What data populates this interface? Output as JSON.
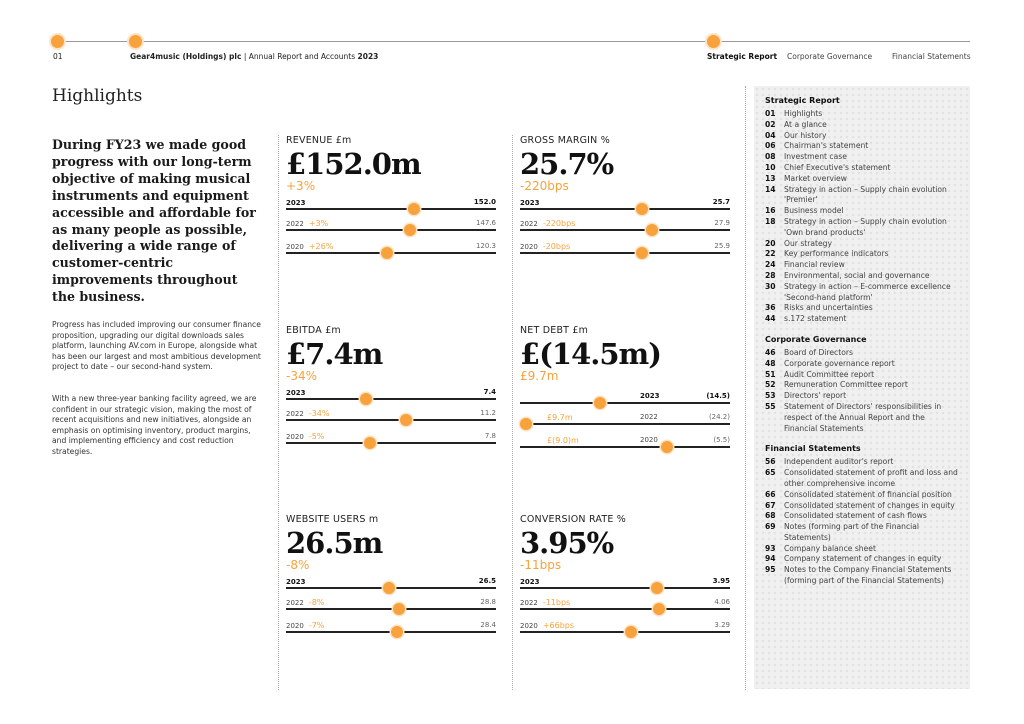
{
  "header": {
    "page_number": "01",
    "company": "Gear4music (Holdings) plc",
    "report": "Annual Report and Accounts",
    "year": "2023",
    "nav": [
      "Strategic Report",
      "Corporate Governance",
      "Financial Statements"
    ]
  },
  "title": "Highlights",
  "intro": "During FY23 we made good progress with our long-term objective of making musical instruments and equipment accessible and affordable for as many people as possible, delivering a wide range of customer-centric improvements throughout the business.",
  "paragraphs": [
    "Progress has included improving our consumer finance proposition, upgrading our digital downloads sales platform, launching AV.com in Europe, alongside what has been our largest and most ambitious development project to date – our second-hand system.",
    "With a new three-year banking facility agreed, we are confident in our strategic vision, making the most of recent acquisitions and new initiatives, alongside an emphasis on optimising inventory, product margins, and implementing efficiency and cost reduction strategies."
  ],
  "colors": {
    "accent": "#f7a23c"
  },
  "metrics": [
    {
      "title": "REVENUE £m",
      "value": "£152.0m",
      "change": "+3%",
      "rows": [
        {
          "year": "2023",
          "change": "",
          "value": "152.0",
          "marker": 0.61
        },
        {
          "year": "2022",
          "change": "+3%",
          "value": "147.6",
          "marker": 0.59
        },
        {
          "year": "2020",
          "change": "+26%",
          "value": "120.3",
          "marker": 0.48
        }
      ]
    },
    {
      "title": "GROSS MARGIN %",
      "value": "25.7%",
      "change": "-220bps",
      "rows": [
        {
          "year": "2023",
          "change": "",
          "value": "25.7",
          "marker": 0.58
        },
        {
          "year": "2022",
          "change": "-220bps",
          "value": "27.9",
          "marker": 0.63
        },
        {
          "year": "2020",
          "change": "-20bps",
          "value": "25.9",
          "marker": 0.58
        }
      ]
    },
    {
      "title": "EBITDA £m",
      "value": "£7.4m",
      "change": "-34%",
      "rows": [
        {
          "year": "2023",
          "change": "",
          "value": "7.4",
          "marker": 0.38
        },
        {
          "year": "2022",
          "change": "-34%",
          "value": "11.2",
          "marker": 0.57
        },
        {
          "year": "2020",
          "change": "-5%",
          "value": "7.8",
          "marker": 0.4
        }
      ]
    },
    {
      "title": "NET DEBT £m",
      "value": "£(14.5m)",
      "change": "£9.7m",
      "rows": [
        {
          "year": "2023",
          "change": "",
          "value": "(14.5)",
          "marker": 0.38
        },
        {
          "year": "2022",
          "change": "£9.7m",
          "value": "(24.2)",
          "marker": 0.03
        },
        {
          "year": "2020",
          "change": "£(9.0)m",
          "value": "(5.5)",
          "marker": 0.7
        }
      ]
    },
    {
      "title": "WEBSITE USERS m",
      "value": "26.5m",
      "change": "-8%",
      "rows": [
        {
          "year": "2023",
          "change": "",
          "value": "26.5",
          "marker": 0.49
        },
        {
          "year": "2022",
          "change": "-8%",
          "value": "28.8",
          "marker": 0.54
        },
        {
          "year": "2020",
          "change": "-7%",
          "value": "28.4",
          "marker": 0.53
        }
      ]
    },
    {
      "title": "CONVERSION RATE %",
      "value": "3.95%",
      "change": "-11bps",
      "rows": [
        {
          "year": "2023",
          "change": "",
          "value": "3.95",
          "marker": 0.65
        },
        {
          "year": "2022",
          "change": "-11bps",
          "value": "4.06",
          "marker": 0.66
        },
        {
          "year": "2020",
          "change": "+66bps",
          "value": "3.29",
          "marker": 0.53
        }
      ]
    }
  ],
  "contents": [
    {
      "section": "Strategic Report",
      "items": [
        [
          "01",
          "Highlights"
        ],
        [
          "02",
          "At a glance"
        ],
        [
          "04",
          "Our history"
        ],
        [
          "06",
          "Chairman's statement"
        ],
        [
          "08",
          "Investment case"
        ],
        [
          "10",
          "Chief Executive's statement"
        ],
        [
          "13",
          "Market overview"
        ],
        [
          "14",
          "Strategy in action – Supply chain evolution 'Premier'"
        ],
        [
          "16",
          "Business model"
        ],
        [
          "18",
          "Strategy in action – Supply chain evolution 'Own brand products'"
        ],
        [
          "20",
          "Our strategy"
        ],
        [
          "22",
          "Key performance indicators"
        ],
        [
          "24",
          "Financial review"
        ],
        [
          "28",
          "Environmental, social and governance"
        ],
        [
          "30",
          "Strategy in action – E-commerce excellence 'Second-hand platform'"
        ],
        [
          "36",
          "Risks and uncertainties"
        ],
        [
          "44",
          "s.172 statement"
        ]
      ]
    },
    {
      "section": "Corporate Governance",
      "items": [
        [
          "46",
          "Board of Directors"
        ],
        [
          "48",
          "Corporate governance report"
        ],
        [
          "51",
          "Audit Committee report"
        ],
        [
          "52",
          "Remuneration Committee report"
        ],
        [
          "53",
          "Directors' report"
        ],
        [
          "55",
          "Statement of Directors' responsibilities in respect of the Annual Report and the Financial Statements"
        ]
      ]
    },
    {
      "section": "Financial Statements",
      "items": [
        [
          "56",
          "Independent auditor's report"
        ],
        [
          "65",
          "Consolidated statement of profit and loss and other comprehensive income"
        ],
        [
          "66",
          "Consolidated statement of financial position"
        ],
        [
          "67",
          "Consolidated statement of changes in equity"
        ],
        [
          "68",
          "Consolidated statement of cash flows"
        ],
        [
          "69",
          "Notes (forming part of the Financial Statements)"
        ],
        [
          "93",
          "Company balance sheet"
        ],
        [
          "94",
          "Company statement of changes in equity"
        ],
        [
          "95",
          "Notes to the Company Financial Statements (forming part of the Financial Statements)"
        ]
      ]
    }
  ]
}
